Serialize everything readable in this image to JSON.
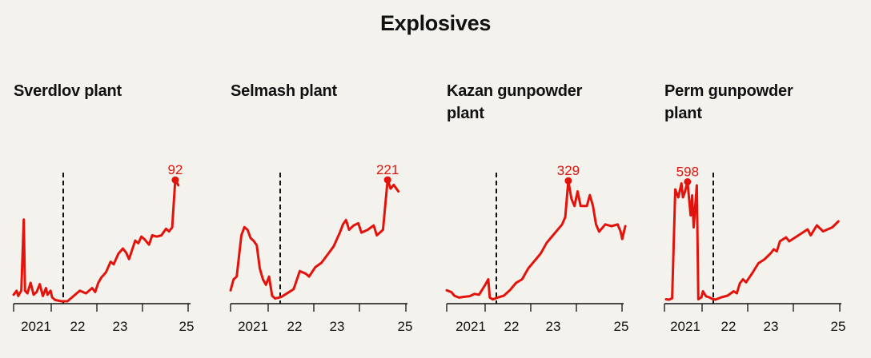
{
  "title": "Explosives",
  "colors": {
    "line": "#e3120b",
    "axis": "#111111",
    "background": "#f4f2ed"
  },
  "chart_data": [
    {
      "type": "line",
      "title": "Sverdlov plant",
      "x_tick_labels": [
        "2021",
        "22",
        "23",
        "25"
      ],
      "invasion_marker": "dashed vertical line",
      "peak_label": "92",
      "ylim": [
        0,
        100
      ],
      "series": [
        {
          "values": [
            [
              2020.35,
              5
            ],
            [
              2020.45,
              8
            ],
            [
              2020.5,
              4
            ],
            [
              2020.6,
              8
            ],
            [
              2020.68,
              62
            ],
            [
              2020.72,
              8
            ],
            [
              2020.8,
              6
            ],
            [
              2020.9,
              14
            ],
            [
              2021.0,
              5
            ],
            [
              2021.1,
              7
            ],
            [
              2021.2,
              13
            ],
            [
              2021.3,
              4
            ],
            [
              2021.4,
              10
            ],
            [
              2021.45,
              5
            ],
            [
              2021.55,
              8
            ],
            [
              2021.6,
              3
            ],
            [
              2021.7,
              1
            ],
            [
              2021.9,
              0
            ],
            [
              2022.1,
              0
            ],
            [
              2022.3,
              4
            ],
            [
              2022.5,
              8
            ],
            [
              2022.7,
              6
            ],
            [
              2022.9,
              10
            ],
            [
              2023.0,
              7
            ],
            [
              2023.1,
              14
            ],
            [
              2023.2,
              18
            ],
            [
              2023.35,
              22
            ],
            [
              2023.5,
              30
            ],
            [
              2023.6,
              28
            ],
            [
              2023.75,
              36
            ],
            [
              2023.9,
              40
            ],
            [
              2024.0,
              37
            ],
            [
              2024.1,
              32
            ],
            [
              2024.3,
              46
            ],
            [
              2024.4,
              44
            ],
            [
              2024.5,
              49
            ],
            [
              2024.6,
              47
            ],
            [
              2024.75,
              43
            ],
            [
              2024.85,
              50
            ],
            [
              2025.0,
              49
            ],
            [
              2025.15,
              50
            ],
            [
              2025.3,
              55
            ],
            [
              2025.4,
              53
            ],
            [
              2025.5,
              56
            ],
            [
              2025.6,
              92
            ],
            [
              2025.7,
              88
            ]
          ]
        }
      ],
      "peak_point": [
        2025.6,
        92
      ]
    },
    {
      "type": "line",
      "title": "Selmash plant",
      "x_tick_labels": [
        "2021",
        "22",
        "23",
        "25"
      ],
      "invasion_marker": "dashed vertical line",
      "peak_label": "221",
      "ylim": [
        0,
        240
      ],
      "series": [
        {
          "values": [
            [
              2020.35,
              20
            ],
            [
              2020.45,
              40
            ],
            [
              2020.55,
              45
            ],
            [
              2020.7,
              120
            ],
            [
              2020.8,
              135
            ],
            [
              2020.9,
              130
            ],
            [
              2021.0,
              115
            ],
            [
              2021.1,
              110
            ],
            [
              2021.2,
              102
            ],
            [
              2021.3,
              60
            ],
            [
              2021.4,
              40
            ],
            [
              2021.5,
              30
            ],
            [
              2021.6,
              45
            ],
            [
              2021.7,
              10
            ],
            [
              2021.8,
              5
            ],
            [
              2022.0,
              8
            ],
            [
              2022.2,
              15
            ],
            [
              2022.4,
              22
            ],
            [
              2022.6,
              55
            ],
            [
              2022.8,
              50
            ],
            [
              2022.9,
              45
            ],
            [
              2023.1,
              62
            ],
            [
              2023.3,
              70
            ],
            [
              2023.5,
              85
            ],
            [
              2023.7,
              100
            ],
            [
              2023.9,
              125
            ],
            [
              2024.0,
              140
            ],
            [
              2024.1,
              148
            ],
            [
              2024.2,
              130
            ],
            [
              2024.35,
              138
            ],
            [
              2024.5,
              142
            ],
            [
              2024.6,
              125
            ],
            [
              2024.8,
              130
            ],
            [
              2025.0,
              138
            ],
            [
              2025.1,
              120
            ],
            [
              2025.3,
              130
            ],
            [
              2025.45,
              221
            ],
            [
              2025.55,
              205
            ],
            [
              2025.65,
              212
            ],
            [
              2025.8,
              200
            ]
          ]
        }
      ],
      "peak_point": [
        2025.45,
        221
      ]
    },
    {
      "type": "line",
      "title": "Kazan gunpowder plant",
      "x_tick_labels": [
        "2021",
        "22",
        "23",
        "25"
      ],
      "invasion_marker": "dashed vertical line",
      "peak_label": "329",
      "ylim": [
        0,
        360
      ],
      "series": [
        {
          "values": [
            [
              2020.35,
              30
            ],
            [
              2020.5,
              25
            ],
            [
              2020.6,
              15
            ],
            [
              2020.75,
              10
            ],
            [
              2020.9,
              12
            ],
            [
              2021.1,
              14
            ],
            [
              2021.25,
              20
            ],
            [
              2021.4,
              18
            ],
            [
              2021.6,
              45
            ],
            [
              2021.7,
              60
            ],
            [
              2021.75,
              10
            ],
            [
              2021.85,
              5
            ],
            [
              2022.0,
              10
            ],
            [
              2022.2,
              15
            ],
            [
              2022.4,
              30
            ],
            [
              2022.6,
              50
            ],
            [
              2022.8,
              60
            ],
            [
              2023.0,
              90
            ],
            [
              2023.2,
              110
            ],
            [
              2023.4,
              130
            ],
            [
              2023.6,
              160
            ],
            [
              2023.8,
              180
            ],
            [
              2024.0,
              200
            ],
            [
              2024.1,
              210
            ],
            [
              2024.2,
              230
            ],
            [
              2024.3,
              329
            ],
            [
              2024.4,
              280
            ],
            [
              2024.5,
              260
            ],
            [
              2024.6,
              300
            ],
            [
              2024.7,
              260
            ],
            [
              2024.9,
              260
            ],
            [
              2025.0,
              290
            ],
            [
              2025.1,
              260
            ],
            [
              2025.2,
              210
            ],
            [
              2025.3,
              190
            ],
            [
              2025.5,
              210
            ],
            [
              2025.7,
              205
            ],
            [
              2025.9,
              210
            ],
            [
              2026.0,
              190
            ],
            [
              2026.05,
              170
            ],
            [
              2026.15,
              205
            ]
          ]
        }
      ],
      "peak_point": [
        2024.3,
        329
      ]
    },
    {
      "type": "line",
      "title": "Perm gunpowder plant",
      "x_tick_labels": [
        "2021",
        "22",
        "23",
        "25"
      ],
      "invasion_marker": "dashed vertical line",
      "peak_label": "598",
      "ylim": [
        0,
        660
      ],
      "series": [
        {
          "values": [
            [
              2020.4,
              10
            ],
            [
              2020.5,
              8
            ],
            [
              2020.6,
              15
            ],
            [
              2020.7,
              560
            ],
            [
              2020.8,
              520
            ],
            [
              2020.9,
              590
            ],
            [
              2020.95,
              520
            ],
            [
              2021.0,
              540
            ],
            [
              2021.1,
              598
            ],
            [
              2021.2,
              430
            ],
            [
              2021.25,
              530
            ],
            [
              2021.3,
              370
            ],
            [
              2021.4,
              580
            ],
            [
              2021.45,
              10
            ],
            [
              2021.55,
              20
            ],
            [
              2021.6,
              50
            ],
            [
              2021.7,
              25
            ],
            [
              2021.8,
              20
            ],
            [
              2021.9,
              12
            ],
            [
              2022.0,
              8
            ],
            [
              2022.2,
              20
            ],
            [
              2022.4,
              28
            ],
            [
              2022.6,
              50
            ],
            [
              2022.7,
              40
            ],
            [
              2022.8,
              90
            ],
            [
              2022.9,
              110
            ],
            [
              2023.0,
              95
            ],
            [
              2023.2,
              140
            ],
            [
              2023.4,
              190
            ],
            [
              2023.6,
              210
            ],
            [
              2023.8,
              240
            ],
            [
              2023.9,
              260
            ],
            [
              2024.0,
              250
            ],
            [
              2024.1,
              300
            ],
            [
              2024.3,
              320
            ],
            [
              2024.4,
              300
            ],
            [
              2024.6,
              320
            ],
            [
              2024.8,
              340
            ],
            [
              2025.0,
              360
            ],
            [
              2025.1,
              330
            ],
            [
              2025.3,
              380
            ],
            [
              2025.5,
              350
            ],
            [
              2025.8,
              370
            ],
            [
              2026.0,
              400
            ]
          ]
        }
      ],
      "peak_point": [
        2021.1,
        598
      ]
    }
  ]
}
